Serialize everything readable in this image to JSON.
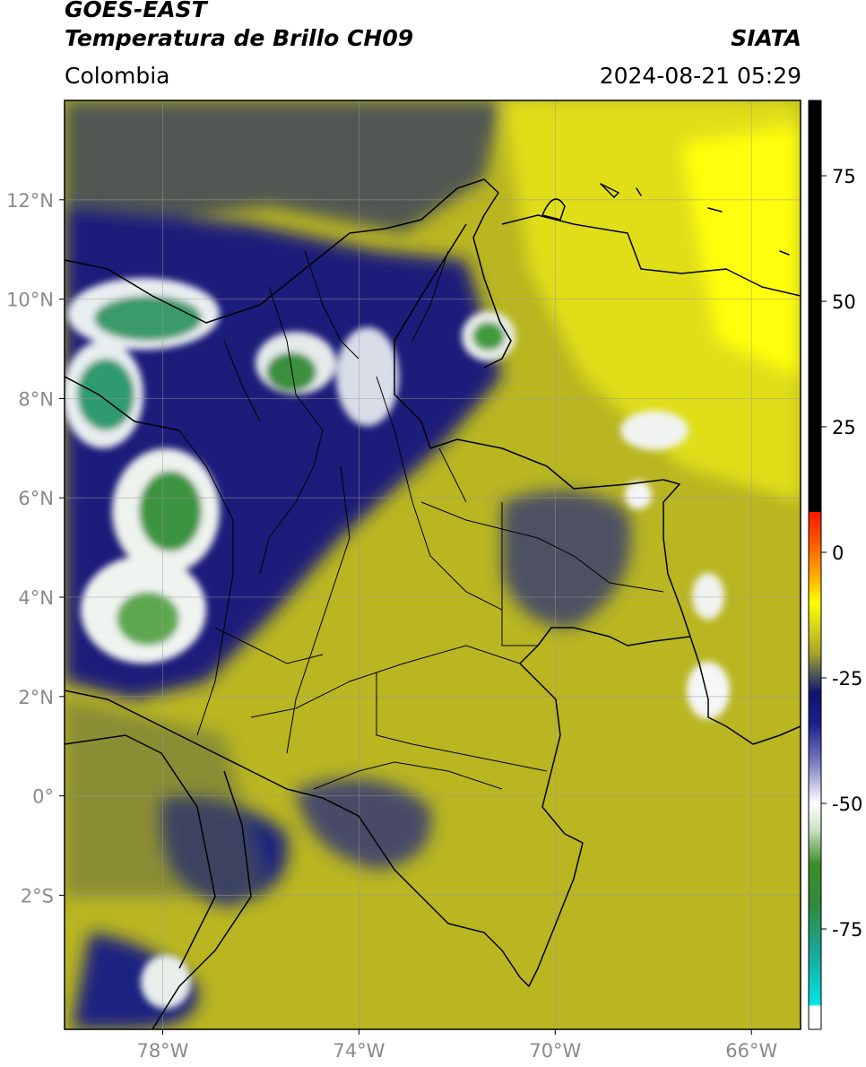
{
  "header": {
    "title_line1": "GOES-EAST",
    "title_line2": "Temperatura de Brillo CH09",
    "brand": "SIATA",
    "region": "Colombia",
    "datetime": "2024-08-21 05:29"
  },
  "map": {
    "lon_range": [
      -80,
      -65
    ],
    "lat_range": [
      -4.7,
      14
    ],
    "lon_ticks": [
      {
        "value": -78,
        "label": "78°W"
      },
      {
        "value": -74,
        "label": "74°W"
      },
      {
        "value": -70,
        "label": "70°W"
      },
      {
        "value": -66,
        "label": "66°W"
      }
    ],
    "lat_ticks": [
      {
        "value": 12,
        "label": "12°N"
      },
      {
        "value": 10,
        "label": "10°N"
      },
      {
        "value": 8,
        "label": "8°N"
      },
      {
        "value": 6,
        "label": "6°N"
      },
      {
        "value": 4,
        "label": "4°N"
      },
      {
        "value": 2,
        "label": "2°N"
      },
      {
        "value": 0,
        "label": "0°"
      },
      {
        "value": -2,
        "label": "2°S"
      }
    ],
    "background_color": "#b9b622",
    "grid": true
  },
  "colorbar": {
    "vmin": -95,
    "vmax": 90,
    "ticks": [
      {
        "value": 75,
        "label": "75"
      },
      {
        "value": 50,
        "label": "50"
      },
      {
        "value": 25,
        "label": "25"
      },
      {
        "value": 0,
        "label": "0"
      },
      {
        "value": -25,
        "label": "-25"
      },
      {
        "value": -50,
        "label": "-50"
      },
      {
        "value": -75,
        "label": "-75"
      }
    ],
    "stops": [
      {
        "value": -95,
        "color": "#ffffff"
      },
      {
        "value": -90.5,
        "color": "#ffffff"
      },
      {
        "value": -90,
        "color": "#00e5e5"
      },
      {
        "value": -80,
        "color": "#1aa89a"
      },
      {
        "value": -70,
        "color": "#2e8a3a"
      },
      {
        "value": -62,
        "color": "#3d8f2a"
      },
      {
        "value": -55,
        "color": "#cfe3c8"
      },
      {
        "value": -50,
        "color": "#ffffff"
      },
      {
        "value": -42,
        "color": "#7b7fc0"
      },
      {
        "value": -34,
        "color": "#1c1f8a"
      },
      {
        "value": -28,
        "color": "#10146a"
      },
      {
        "value": -24,
        "color": "#555d5a"
      },
      {
        "value": -20,
        "color": "#a9a62a"
      },
      {
        "value": -15,
        "color": "#d4d21c"
      },
      {
        "value": -10,
        "color": "#ffff00"
      },
      {
        "value": -5,
        "color": "#ffb000"
      },
      {
        "value": 0,
        "color": "#ff7000"
      },
      {
        "value": 8,
        "color": "#ff1500"
      },
      {
        "value": 8.01,
        "color": "#000000"
      },
      {
        "value": 90,
        "color": "#000000"
      }
    ]
  }
}
